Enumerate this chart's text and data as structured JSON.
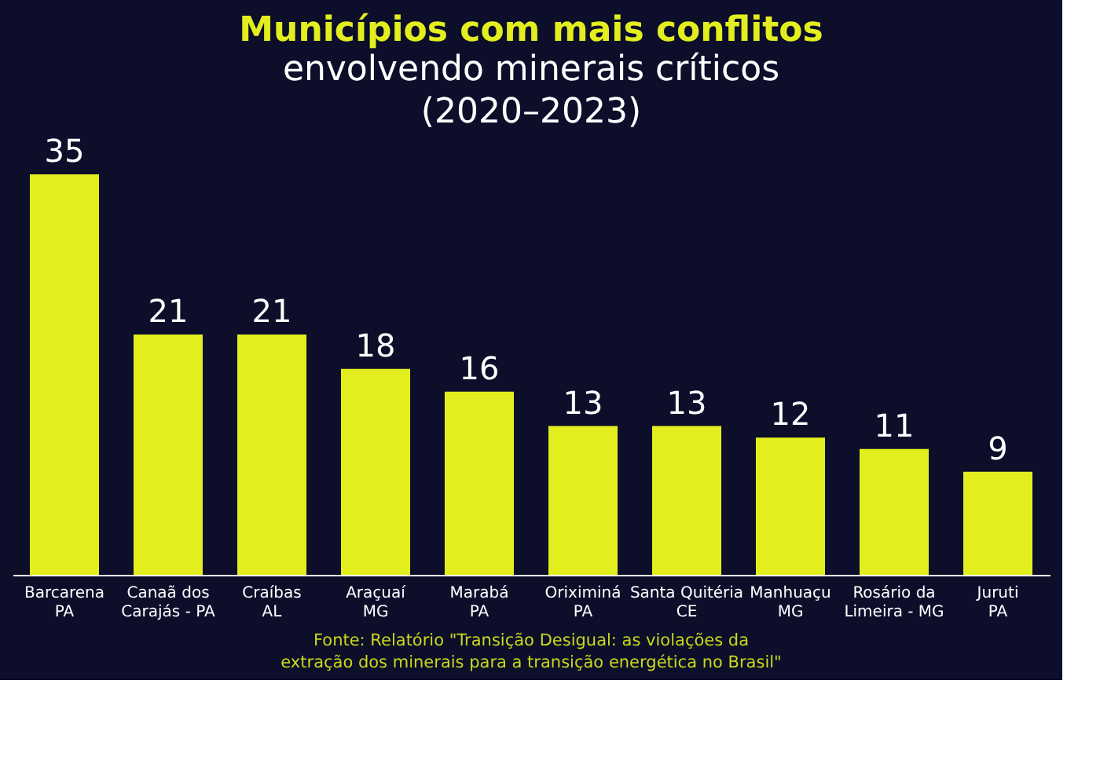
{
  "chart_data": {
    "type": "bar",
    "title": "Municípios com mais conflitos",
    "subtitle": "envolvendo minerais críticos\n(2020–2023)",
    "categories": [
      "Barcarena\nPA",
      "Canaã dos\nCarajás - PA",
      "Craíbas\nAL",
      "Araçuaí\nMG",
      "Marabá\nPA",
      "Oriximiná\nPA",
      "Santa Quitéria\nCE",
      "Manhuaçu\nMG",
      "Rosário da\nLimeira - MG",
      "Juruti\nPA"
    ],
    "values": [
      35,
      21,
      21,
      18,
      16,
      13,
      13,
      12,
      11,
      9
    ],
    "color": "#e3ee1e",
    "data_labels": true,
    "ylim": [
      0,
      35
    ],
    "grid": false,
    "annotations": [
      "Fonte: Relatório \"Transição Desigual: as violações da\nextração dos minerais para a transição energética no Brasil\""
    ]
  }
}
